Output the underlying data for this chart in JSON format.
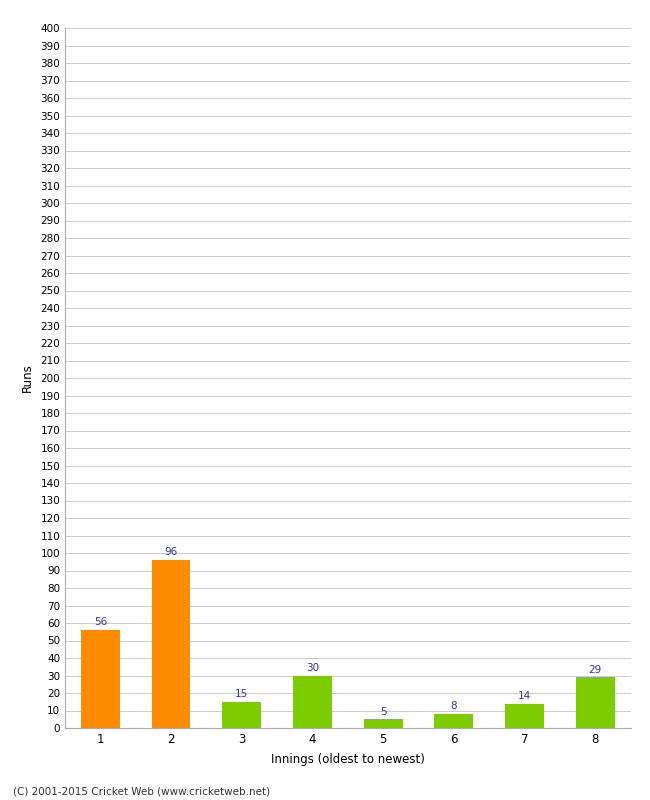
{
  "categories": [
    "1",
    "2",
    "3",
    "4",
    "5",
    "6",
    "7",
    "8"
  ],
  "values": [
    56,
    96,
    15,
    30,
    5,
    8,
    14,
    29
  ],
  "bar_colors": [
    "#ff8c00",
    "#ff8c00",
    "#7ccc00",
    "#7ccc00",
    "#7ccc00",
    "#7ccc00",
    "#7ccc00",
    "#7ccc00"
  ],
  "xlabel": "Innings (oldest to newest)",
  "ylabel": "Runs",
  "ylim": [
    0,
    400
  ],
  "yticks": [
    0,
    10,
    20,
    30,
    40,
    50,
    60,
    70,
    80,
    90,
    100,
    110,
    120,
    130,
    140,
    150,
    160,
    170,
    180,
    190,
    200,
    210,
    220,
    230,
    240,
    250,
    260,
    270,
    280,
    290,
    300,
    310,
    320,
    330,
    340,
    350,
    360,
    370,
    380,
    390,
    400
  ],
  "background_color": "#ffffff",
  "grid_color": "#cccccc",
  "label_color": "#3333aa",
  "footer": "(C) 2001-2015 Cricket Web (www.cricketweb.net)",
  "bar_width": 0.55
}
